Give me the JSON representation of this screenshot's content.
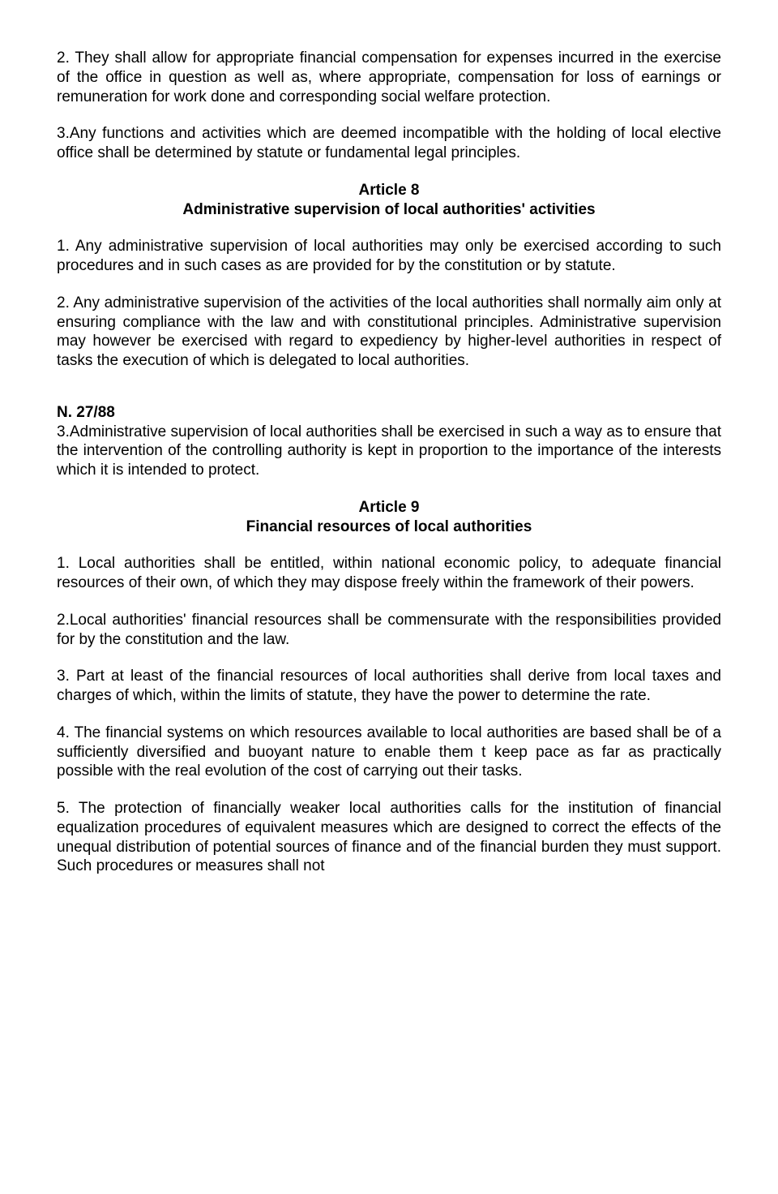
{
  "p1": "2. They shall allow for appropriate financial compensation for expenses incurred in the exercise of the office in question as well as, where appropriate, compensation for loss of earnings or remuneration for work done and corresponding social welfare protection.",
  "p2": "3.Any functions and activities which  are deemed incompatible with the holding of local elective office shall be determined by statute or fundamental legal principles.",
  "article8": {
    "title": "Article 8",
    "subtitle": "Administrative supervision of local authorities' activities"
  },
  "p3": "1. Any administrative supervision of local authorities may only be exercised according to such procedures and in such cases as are provided for by the constitution or by  statute.",
  "p4": "2. Any administrative supervision of the activities of the local authorities shall normally aim only at ensuring compliance with the law and with constitutional principles. Administrative supervision may however be exercised with regard to expediency by higher-level authorities in respect of tasks the execution of which is delegated to local authorities.",
  "sectionRef": "N. 27/88",
  "p5": "3.Administrative supervision of local authorities shall be exercised in such a way as to ensure that the intervention of the controlling authority is kept in proportion to the importance of the interests which it is intended to protect.",
  "article9": {
    "title": "Article 9",
    "subtitle": "Financial resources of local authorities"
  },
  "p6": "1. Local authorities shall be entitled, within national economic policy, to adequate financial  resources of their own, of which they may dispose freely within the framework of their powers.",
  "p7": "2.Local authorities' financial resources shall be commensurate with the responsibilities provided for by the constitution and the law.",
  "p8": "3. Part at least of the financial resources of local authorities shall derive from local taxes and charges of which, within the limits of statute, they have the power to determine the rate.",
  "p9": "4. The financial systems on which resources available to local authorities are based shall be of a sufficiently  diversified and buoyant nature to enable them t keep pace as far as practically possible with the real evolution of the cost of carrying out their tasks.",
  "p10": "5. The protection of financially weaker local authorities calls for the institution of financial equalization procedures of equivalent measures which are designed to correct the effects of the unequal distribution of potential sources of finance and of the financial burden they must support. Such procedures or measures shall not"
}
